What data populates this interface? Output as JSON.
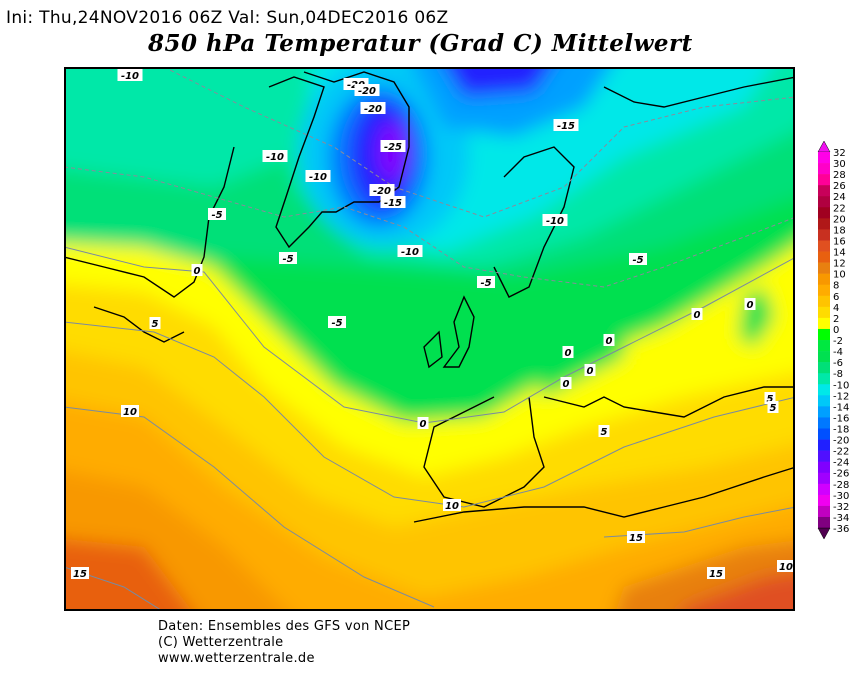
{
  "header": {
    "init_line": "Ini: Thu,24NOV2016 06Z Val: Sun,04DEC2016 06Z",
    "title": "850 hPa Temperatur (Grad C) Mittelwert"
  },
  "map": {
    "field": "850 hPa temperature ensemble mean",
    "contour_labels": [
      "-10",
      "-20",
      "-20",
      "-20",
      "-25",
      "-10",
      "-10",
      "-20",
      "-15",
      "-10",
      "-5",
      "-5",
      "0",
      "-15",
      "-10",
      "-5",
      "-5",
      "-5",
      "5",
      "0",
      "0",
      "0",
      "0",
      "0",
      "0",
      "10",
      "0",
      "5",
      "5",
      "5",
      "10",
      "15",
      "15",
      "15",
      "10"
    ]
  },
  "colorbar": {
    "labels": [
      "32",
      "30",
      "28",
      "26",
      "24",
      "22",
      "20",
      "18",
      "16",
      "14",
      "12",
      "10",
      "8",
      "6",
      "4",
      "2",
      "0",
      "-2",
      "-4",
      "-6",
      "-8",
      "-10",
      "-12",
      "-14",
      "-16",
      "-18",
      "-20",
      "-22",
      "-24",
      "-26",
      "-28",
      "-30",
      "-32",
      "-34",
      "-36"
    ],
    "colors": [
      "#ff00e8",
      "#ff00c8",
      "#ff0098",
      "#c8005a",
      "#b00040",
      "#a00020",
      "#b01818",
      "#c83020",
      "#e05020",
      "#e86010",
      "#e88010",
      "#f89800",
      "#ffac00",
      "#ffc400",
      "#ffdc00",
      "#ffff00",
      "#00ff00",
      "#00e840",
      "#00e050",
      "#00e078",
      "#00e8a8",
      "#00e8e8",
      "#00c8f8",
      "#00a0ff",
      "#0078ff",
      "#0050ff",
      "#2020ff",
      "#5010ff",
      "#8000ff",
      "#a000ff",
      "#d000ff",
      "#f000f0",
      "#c000c0",
      "#800080"
    ],
    "top_color": "#f010f0",
    "bottom_color": "#500050"
  },
  "footer": {
    "line1": "Daten: Ensembles des GFS von NCEP",
    "line2": "(C) Wetterzentrale",
    "line3": "www.wetterzentrale.de"
  }
}
